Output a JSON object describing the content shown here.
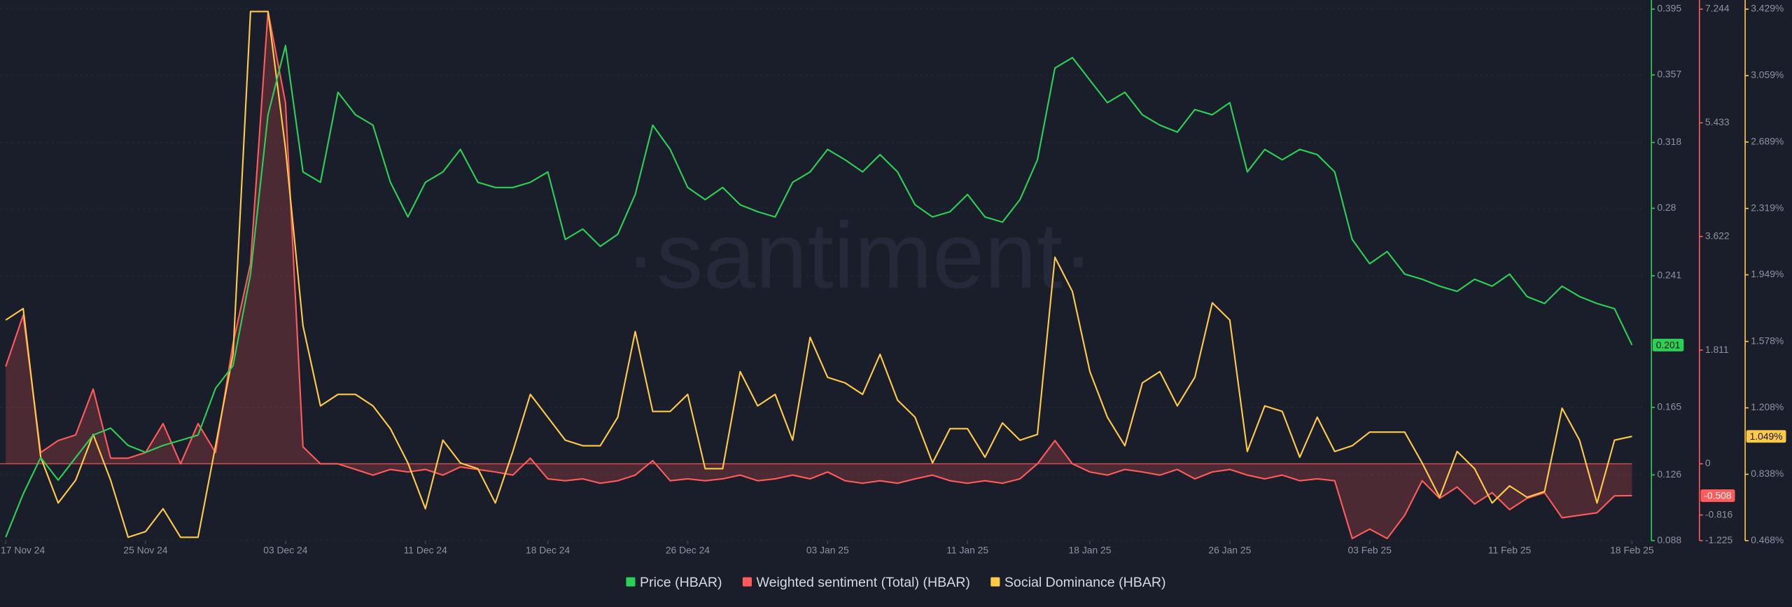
{
  "chart_data": {
    "type": "line",
    "watermark": "·santiment·",
    "x": [
      "2024-11-17",
      "2024-11-18",
      "2024-11-19",
      "2024-11-20",
      "2024-11-21",
      "2024-11-22",
      "2024-11-23",
      "2024-11-24",
      "2024-11-25",
      "2024-11-26",
      "2024-11-27",
      "2024-11-28",
      "2024-11-29",
      "2024-11-30",
      "2024-12-01",
      "2024-12-02",
      "2024-12-03",
      "2024-12-04",
      "2024-12-05",
      "2024-12-06",
      "2024-12-07",
      "2024-12-08",
      "2024-12-09",
      "2024-12-10",
      "2024-12-11",
      "2024-12-12",
      "2024-12-13",
      "2024-12-14",
      "2024-12-15",
      "2024-12-16",
      "2024-12-17",
      "2024-12-18",
      "2024-12-19",
      "2024-12-20",
      "2024-12-21",
      "2024-12-22",
      "2024-12-23",
      "2024-12-24",
      "2024-12-25",
      "2024-12-26",
      "2024-12-27",
      "2024-12-28",
      "2024-12-29",
      "2024-12-30",
      "2024-12-31",
      "2025-01-01",
      "2025-01-02",
      "2025-01-03",
      "2025-01-04",
      "2025-01-05",
      "2025-01-06",
      "2025-01-07",
      "2025-01-08",
      "2025-01-09",
      "2025-01-10",
      "2025-01-11",
      "2025-01-12",
      "2025-01-13",
      "2025-01-14",
      "2025-01-15",
      "2025-01-16",
      "2025-01-17",
      "2025-01-18",
      "2025-01-19",
      "2025-01-20",
      "2025-01-21",
      "2025-01-22",
      "2025-01-23",
      "2025-01-24",
      "2025-01-25",
      "2025-01-26",
      "2025-01-27",
      "2025-01-28",
      "2025-01-29",
      "2025-01-30",
      "2025-01-31",
      "2025-02-01",
      "2025-02-02",
      "2025-02-03",
      "2025-02-04",
      "2025-02-05",
      "2025-02-06",
      "2025-02-07",
      "2025-02-08",
      "2025-02-09",
      "2025-02-10",
      "2025-02-11",
      "2025-02-12",
      "2025-02-13",
      "2025-02-14",
      "2025-02-15",
      "2025-02-16",
      "2025-02-17",
      "2025-02-18"
    ],
    "xlim": [
      "2024-11-17",
      "2025-02-18"
    ],
    "xticks": [
      {
        "value": "2024-11-17",
        "label": "17 Nov 24"
      },
      {
        "value": "2024-11-25",
        "label": "25 Nov 24"
      },
      {
        "value": "2024-12-03",
        "label": "03 Dec 24"
      },
      {
        "value": "2024-12-11",
        "label": "11 Dec 24"
      },
      {
        "value": "2024-12-18",
        "label": "18 Dec 24"
      },
      {
        "value": "2024-12-26",
        "label": "26 Dec 24"
      },
      {
        "value": "2025-01-03",
        "label": "03 Jan 25"
      },
      {
        "value": "2025-01-11",
        "label": "11 Jan 25"
      },
      {
        "value": "2025-01-18",
        "label": "18 Jan 25"
      },
      {
        "value": "2025-01-26",
        "label": "26 Jan 25"
      },
      {
        "value": "2025-02-03",
        "label": "03 Feb 25"
      },
      {
        "value": "2025-02-11",
        "label": "11 Feb 25"
      },
      {
        "value": "2025-02-18",
        "label": "18 Feb 25"
      }
    ],
    "ylim": [
      0.088,
      0.395
    ],
    "yticks": [
      0.088,
      0.126,
      0.165,
      0.241,
      0.28,
      0.318,
      0.357,
      0.395
    ],
    "y2lim": [
      -1.225,
      7.244
    ],
    "y2ticks": [
      -1.225,
      -0.816,
      0,
      1.811,
      3.622,
      5.433,
      7.244
    ],
    "y3lim": [
      0.468,
      3.429
    ],
    "y3ticks": [
      {
        "value": 0.468,
        "label": "0.468%"
      },
      {
        "value": 0.838,
        "label": "0.838%"
      },
      {
        "value": 1.208,
        "label": "1.208%"
      },
      {
        "value": 1.578,
        "label": "1.578%"
      },
      {
        "value": 1.949,
        "label": "1.949%"
      },
      {
        "value": 2.319,
        "label": "2.319%"
      },
      {
        "value": 2.689,
        "label": "2.689%"
      },
      {
        "value": 3.059,
        "label": "3.059%"
      },
      {
        "value": 3.429,
        "label": "3.429%"
      }
    ],
    "grid": true,
    "legend": "bottom",
    "series": [
      {
        "name": "Price (HBAR)",
        "color": "#2bd157",
        "axis": "y",
        "values": [
          0.09,
          0.115,
          0.136,
          0.123,
          0.136,
          0.149,
          0.153,
          0.143,
          0.139,
          0.143,
          0.146,
          0.149,
          0.176,
          0.189,
          0.242,
          0.334,
          0.374,
          0.301,
          0.295,
          0.347,
          0.334,
          0.328,
          0.295,
          0.275,
          0.295,
          0.301,
          0.314,
          0.295,
          0.292,
          0.292,
          0.295,
          0.301,
          0.262,
          0.268,
          0.258,
          0.265,
          0.288,
          0.328,
          0.314,
          0.292,
          0.285,
          0.292,
          0.282,
          0.278,
          0.275,
          0.295,
          0.301,
          0.314,
          0.308,
          0.301,
          0.311,
          0.301,
          0.282,
          0.275,
          0.278,
          0.288,
          0.275,
          0.272,
          0.285,
          0.308,
          0.361,
          0.367,
          0.354,
          0.341,
          0.347,
          0.334,
          0.328,
          0.324,
          0.337,
          0.334,
          0.341,
          0.301,
          0.314,
          0.308,
          0.314,
          0.311,
          0.301,
          0.262,
          0.248,
          0.255,
          0.242,
          0.239,
          0.235,
          0.232,
          0.239,
          0.235,
          0.242,
          0.229,
          0.225,
          0.235,
          0.229,
          0.225,
          0.222,
          0.201
        ]
      },
      {
        "name": "Weighted sentiment (Total) (HBAR)",
        "color": "#ff5b5b",
        "axis": "y2",
        "values": [
          1.55,
          2.37,
          0.18,
          0.37,
          0.46,
          1.19,
          0.09,
          0.09,
          0.18,
          0.64,
          0,
          0.64,
          0.18,
          1.92,
          3.19,
          7.21,
          5.75,
          0.27,
          0,
          0,
          -0.09,
          -0.18,
          -0.09,
          -0.13,
          -0.09,
          -0.18,
          -0.05,
          -0.09,
          -0.13,
          -0.18,
          0.09,
          -0.24,
          -0.27,
          -0.24,
          -0.31,
          -0.27,
          -0.18,
          0.05,
          -0.27,
          -0.24,
          -0.27,
          -0.24,
          -0.18,
          -0.27,
          -0.24,
          -0.18,
          -0.24,
          -0.13,
          -0.27,
          -0.31,
          -0.27,
          -0.31,
          -0.24,
          -0.18,
          -0.27,
          -0.31,
          -0.27,
          -0.31,
          -0.24,
          0,
          0.37,
          0,
          -0.13,
          -0.18,
          -0.09,
          -0.13,
          -0.18,
          -0.09,
          -0.24,
          -0.13,
          -0.09,
          -0.18,
          -0.24,
          -0.18,
          -0.27,
          -0.24,
          -0.27,
          -1.19,
          -1.04,
          -1.19,
          -0.82,
          -0.27,
          -0.55,
          -0.37,
          -0.64,
          -0.46,
          -0.73,
          -0.55,
          -0.46,
          -0.86,
          -0.82,
          -0.78,
          -0.51,
          -0.508
        ]
      },
      {
        "name": "Social Dominance (HBAR)",
        "color": "#ffcb47",
        "axis": "y3",
        "values": [
          1.697,
          1.761,
          0.933,
          0.678,
          0.805,
          1.06,
          0.805,
          0.487,
          0.519,
          0.646,
          0.487,
          0.487,
          0.997,
          1.506,
          3.416,
          3.416,
          2.652,
          1.665,
          1.219,
          1.283,
          1.283,
          1.219,
          1.092,
          0.901,
          0.646,
          1.028,
          0.901,
          0.869,
          0.678,
          0.965,
          1.283,
          1.156,
          1.028,
          0.997,
          0.997,
          1.156,
          1.633,
          1.188,
          1.188,
          1.283,
          0.869,
          0.869,
          1.41,
          1.219,
          1.283,
          1.028,
          1.601,
          1.378,
          1.347,
          1.283,
          1.506,
          1.251,
          1.156,
          0.901,
          1.092,
          1.092,
          0.933,
          1.124,
          1.028,
          1.06,
          2.047,
          1.856,
          1.41,
          1.156,
          0.997,
          1.347,
          1.41,
          1.219,
          1.378,
          1.793,
          1.697,
          0.965,
          1.219,
          1.188,
          0.933,
          1.156,
          0.965,
          0.997,
          1.073,
          1.073,
          1.073,
          0.901,
          0.71,
          0.965,
          0.869,
          0.678,
          0.773,
          0.71,
          0.742,
          1.206,
          1.028,
          0.678,
          1.028,
          1.049
        ],
        "value_labels": [
          null,
          null,
          null,
          null,
          null,
          null,
          null,
          null,
          null,
          null,
          null,
          null,
          null,
          null,
          null,
          null,
          null,
          null,
          null,
          null,
          null,
          null,
          null,
          null,
          null,
          null,
          null,
          null,
          null,
          null,
          null,
          null,
          null,
          null,
          null,
          null,
          null,
          null,
          null,
          null,
          null,
          null,
          null,
          null,
          null,
          null,
          null,
          null,
          null,
          null,
          null,
          null,
          null,
          null,
          null,
          null,
          null,
          null,
          null,
          null,
          null,
          null,
          null,
          null,
          null,
          null,
          null,
          null,
          null,
          null,
          null,
          null,
          null,
          null,
          null,
          null,
          null,
          null,
          null,
          null,
          null,
          null,
          null,
          null,
          null,
          null,
          null,
          null,
          null,
          null,
          null,
          null,
          null,
          "1.049%"
        ]
      }
    ]
  }
}
